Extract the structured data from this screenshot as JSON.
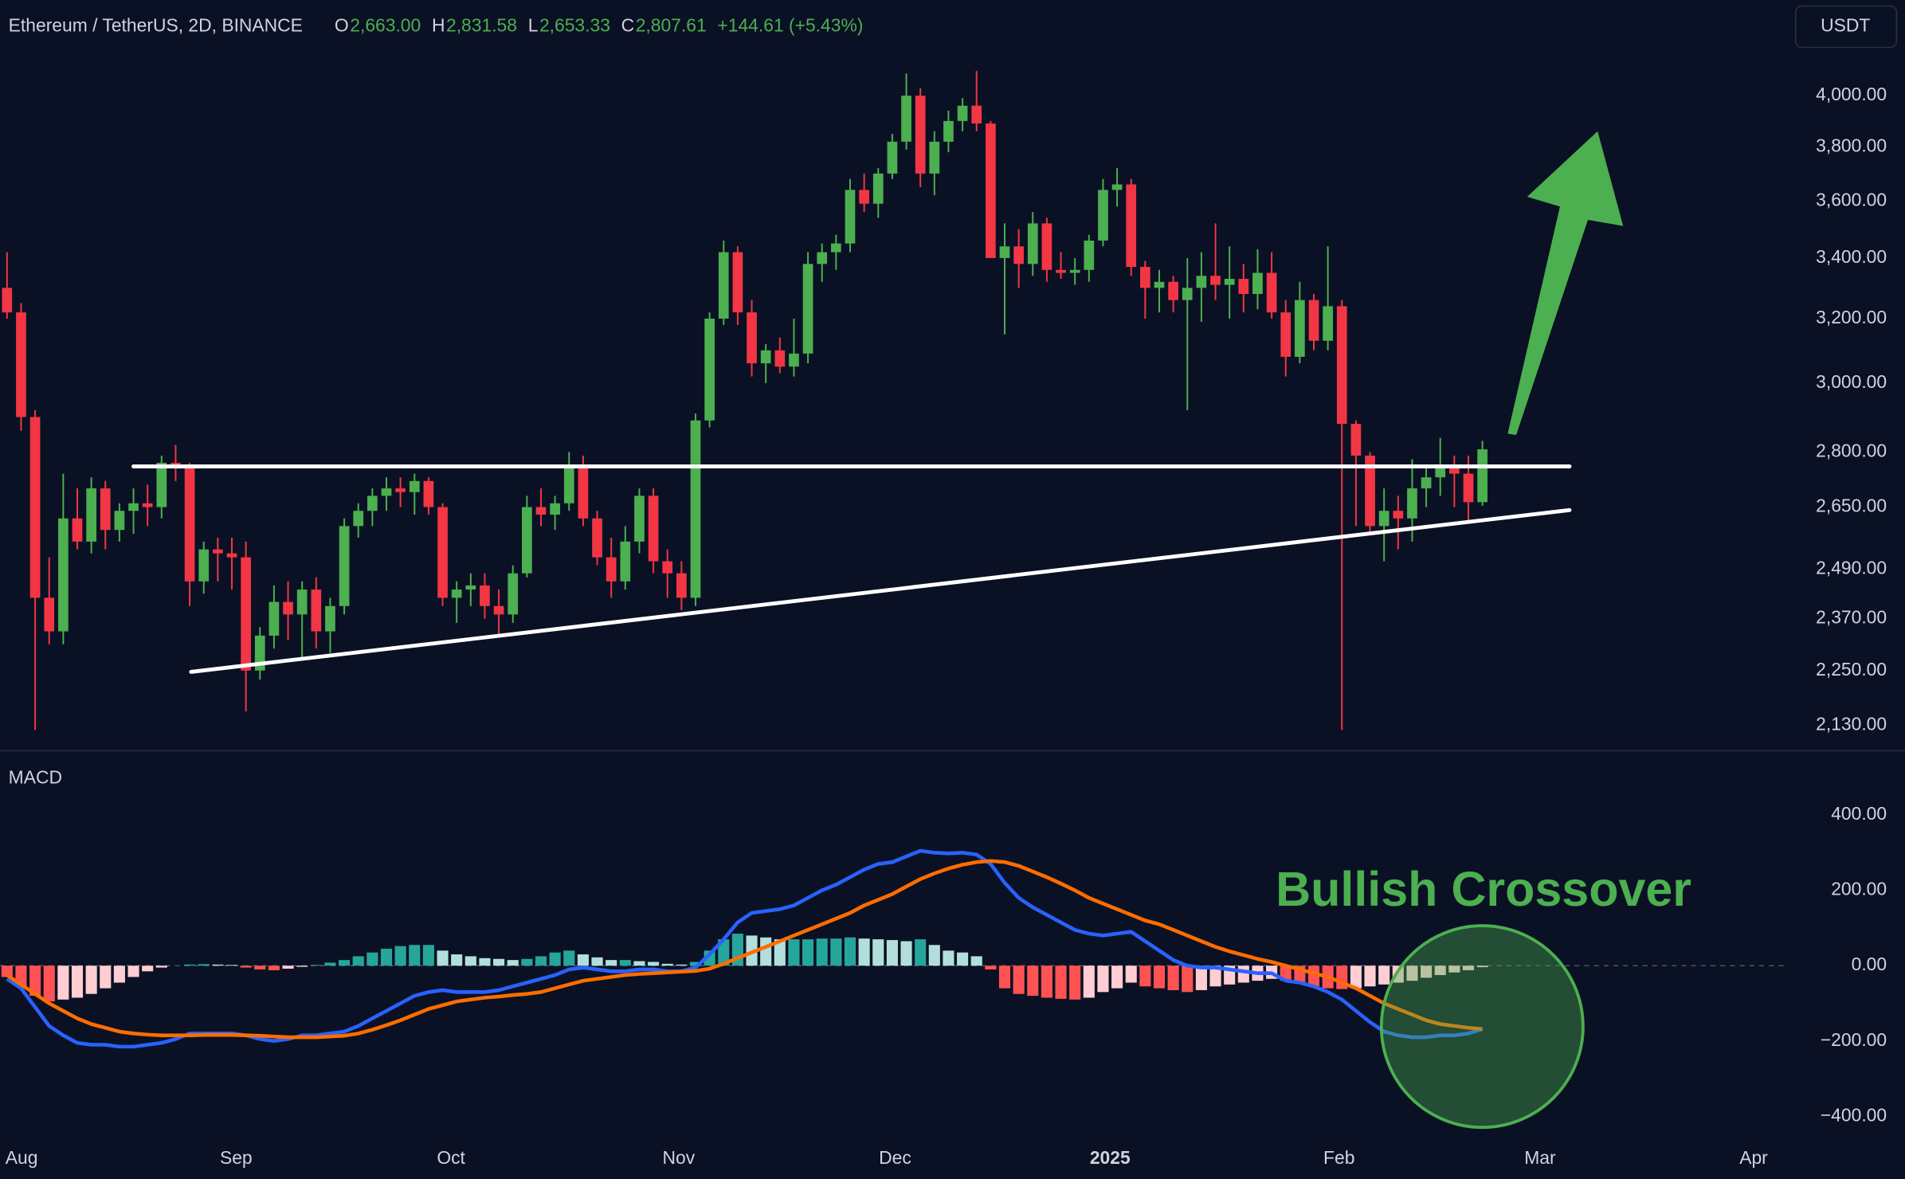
{
  "chart_data": [
    {
      "type": "candlestick",
      "title": "Ethereum / TetherUS, 2D, BINANCE",
      "ohlc_labels": [
        {
          "label": "O",
          "value": "2,663.00"
        },
        {
          "label": "H",
          "value": "2,831.58"
        },
        {
          "label": "L",
          "value": "2,653.33"
        },
        {
          "label": "C",
          "value": "2,807.61"
        }
      ],
      "change": "+144.61 (+5.43%)",
      "currency": "USDT",
      "up_color": "#4caf50",
      "down_color": "#f23645",
      "open": [
        3300,
        3220,
        2900,
        2420,
        2340,
        2620,
        2560,
        2700,
        2590,
        2640,
        2660,
        2650,
        2770,
        2760,
        2460,
        2540,
        2530,
        2520,
        2250,
        2330,
        2410,
        2380,
        2440,
        2340,
        2400,
        2600,
        2640,
        2680,
        2700,
        2690,
        2720,
        2650,
        2420,
        2440,
        2450,
        2400,
        2380,
        2480,
        2650,
        2630,
        2660,
        2760,
        2620,
        2520,
        2460,
        2560,
        2680,
        2510,
        2480,
        2420,
        2890,
        3200,
        3420,
        3220,
        3060,
        3100,
        3050,
        3090,
        3380,
        3420,
        3450,
        3640,
        3590,
        3700,
        3820,
        4000,
        3700,
        3820,
        3900,
        3960,
        3890,
        3400,
        3440,
        3380,
        3520,
        3360,
        3350,
        3360,
        3460,
        3640,
        3660,
        3370,
        3300,
        3320,
        3260,
        3300,
        3340,
        3310,
        3330,
        3280,
        3350,
        3220,
        3080,
        3260,
        3130,
        3240,
        2880,
        2790,
        2600,
        2640,
        2620,
        2700,
        2730,
        2760,
        2740,
        2663
      ],
      "high": [
        3420,
        3250,
        2920,
        2520,
        2740,
        2700,
        2730,
        2720,
        2660,
        2700,
        2710,
        2790,
        2820,
        2770,
        2560,
        2570,
        2570,
        2560,
        2350,
        2450,
        2460,
        2460,
        2470,
        2420,
        2620,
        2660,
        2700,
        2730,
        2730,
        2740,
        2730,
        2660,
        2460,
        2480,
        2480,
        2440,
        2500,
        2680,
        2700,
        2680,
        2800,
        2790,
        2640,
        2570,
        2600,
        2700,
        2700,
        2540,
        2510,
        2910,
        3220,
        3460,
        3440,
        3260,
        3120,
        3140,
        3200,
        3420,
        3450,
        3480,
        3680,
        3700,
        3720,
        3850,
        4090,
        4030,
        3860,
        3940,
        3990,
        4100,
        3900,
        3520,
        3500,
        3560,
        3540,
        3420,
        3400,
        3480,
        3680,
        3720,
        3680,
        3390,
        3360,
        3340,
        3400,
        3420,
        3520,
        3440,
        3380,
        3430,
        3420,
        3260,
        3320,
        3280,
        3440,
        3260,
        2890,
        2800,
        2700,
        2680,
        2780,
        2760,
        2840,
        2790,
        2790,
        2831.58
      ],
      "low": [
        3200,
        2860,
        2120,
        2310,
        2310,
        2540,
        2530,
        2540,
        2560,
        2580,
        2600,
        2620,
        2720,
        2400,
        2430,
        2460,
        2440,
        2160,
        2230,
        2300,
        2320,
        2280,
        2300,
        2290,
        2380,
        2570,
        2600,
        2640,
        2650,
        2630,
        2630,
        2400,
        2360,
        2400,
        2370,
        2330,
        2360,
        2470,
        2600,
        2590,
        2640,
        2600,
        2500,
        2420,
        2440,
        2530,
        2480,
        2420,
        2390,
        2400,
        2870,
        3180,
        3180,
        3020,
        3000,
        3030,
        3020,
        3060,
        3320,
        3360,
        3420,
        3560,
        3540,
        3680,
        3790,
        3650,
        3620,
        3780,
        3860,
        3860,
        3400,
        3150,
        3300,
        3340,
        3320,
        3330,
        3310,
        3320,
        3440,
        3580,
        3340,
        3200,
        3220,
        3220,
        2920,
        3190,
        3260,
        3200,
        3220,
        3230,
        3200,
        3020,
        3060,
        3100,
        3100,
        2120,
        2600,
        2580,
        2510,
        2540,
        2560,
        2650,
        2680,
        2650,
        2610,
        2653.33
      ],
      "close": [
        3220,
        2900,
        2420,
        2340,
        2620,
        2560,
        2700,
        2590,
        2640,
        2660,
        2650,
        2770,
        2760,
        2460,
        2540,
        2530,
        2520,
        2250,
        2330,
        2410,
        2380,
        2440,
        2340,
        2400,
        2600,
        2640,
        2680,
        2700,
        2690,
        2720,
        2650,
        2420,
        2440,
        2450,
        2400,
        2380,
        2480,
        2650,
        2630,
        2660,
        2760,
        2620,
        2520,
        2460,
        2560,
        2680,
        2510,
        2480,
        2420,
        2890,
        3200,
        3420,
        3220,
        3060,
        3100,
        3050,
        3090,
        3380,
        3420,
        3450,
        3640,
        3590,
        3700,
        3820,
        4000,
        3700,
        3820,
        3900,
        3960,
        3890,
        3400,
        3440,
        3380,
        3520,
        3360,
        3350,
        3360,
        3460,
        3640,
        3660,
        3370,
        3300,
        3320,
        3260,
        3300,
        3340,
        3310,
        3330,
        3280,
        3350,
        3220,
        3080,
        3260,
        3130,
        3240,
        2880,
        2790,
        2600,
        2640,
        2620,
        2700,
        2730,
        2760,
        2740,
        2663,
        2807.61
      ],
      "lines": [
        {
          "color": "#ffffff",
          "points": [
            [
              9.0,
              2760
            ],
            [
              111.2,
              2760
            ]
          ]
        },
        {
          "color": "#ffffff",
          "points": [
            [
              13.1,
              2247
            ],
            [
              111.2,
              2642
            ]
          ]
        }
      ],
      "yscale": "log",
      "ylim": [
        2084,
        4193
      ],
      "yticks": [
        {
          "value": 4000,
          "label": "4,000.00"
        },
        {
          "value": 3800,
          "label": "3,800.00"
        },
        {
          "value": 3600,
          "label": "3,600.00"
        },
        {
          "value": 3400,
          "label": "3,400.00"
        },
        {
          "value": 3200,
          "label": "3,200.00"
        },
        {
          "value": 3000,
          "label": "3,000.00"
        },
        {
          "value": 2800,
          "label": "2,800.00"
        },
        {
          "value": 2650,
          "label": "2,650.00"
        },
        {
          "value": 2490,
          "label": "2,490.00"
        },
        {
          "value": 2370,
          "label": "2,370.00"
        },
        {
          "value": 2250,
          "label": "2,250.00"
        },
        {
          "value": 2130,
          "label": "2,130.00"
        }
      ],
      "xlim": [
        -0.5,
        126.6
      ],
      "xticks": [
        {
          "value": 1.04,
          "label": "Aug"
        },
        {
          "value": 16.3,
          "label": "Sep"
        },
        {
          "value": 31.6,
          "label": "Oct"
        },
        {
          "value": 47.8,
          "label": "Nov"
        },
        {
          "value": 63.2,
          "label": "Dec"
        },
        {
          "value": 78.5,
          "label": "2025"
        },
        {
          "value": 94.8,
          "label": "Feb"
        },
        {
          "value": 109.1,
          "label": "Mar"
        },
        {
          "value": 124.3,
          "label": "Apr"
        }
      ],
      "grid": false
    },
    {
      "type": "macd",
      "title": "MACD",
      "annotation": "Bullish Crossover",
      "series": [
        {
          "color": "#2962ff",
          "values": [
            -35,
            -60,
            -110,
            -160,
            -185,
            -205,
            -210,
            -210,
            -215,
            -215,
            -210,
            -205,
            -195,
            -180,
            -180,
            -180,
            -180,
            -185,
            -195,
            -200,
            -195,
            -185,
            -185,
            -180,
            -175,
            -160,
            -140,
            -120,
            -100,
            -80,
            -70,
            -65,
            -70,
            -70,
            -70,
            -65,
            -55,
            -45,
            -35,
            -25,
            -10,
            -5,
            -10,
            -15,
            -15,
            -10,
            -10,
            -15,
            -15,
            -5,
            30,
            70,
            115,
            140,
            145,
            150,
            160,
            180,
            200,
            215,
            235,
            255,
            270,
            275,
            290,
            305,
            300,
            298,
            300,
            295,
            270,
            220,
            180,
            155,
            135,
            115,
            95,
            85,
            80,
            85,
            90,
            65,
            40,
            15,
            0,
            -5,
            -5,
            -10,
            -15,
            -20,
            -20,
            -40,
            -45,
            -55,
            -70,
            -90,
            -120,
            -150,
            -175,
            -185,
            -190,
            -190,
            -185,
            -185,
            -180,
            -168
          ]
        },
        {
          "color": "#ff6d00",
          "values": [
            -25,
            -50,
            -75,
            -100,
            -120,
            -140,
            -155,
            -165,
            -175,
            -180,
            -183,
            -185,
            -185,
            -185,
            -184,
            -184,
            -184,
            -185,
            -186,
            -188,
            -190,
            -190,
            -190,
            -188,
            -186,
            -180,
            -170,
            -158,
            -145,
            -130,
            -115,
            -105,
            -95,
            -90,
            -85,
            -82,
            -78,
            -75,
            -70,
            -60,
            -50,
            -40,
            -35,
            -30,
            -25,
            -22,
            -20,
            -18,
            -16,
            -14,
            -8,
            5,
            20,
            35,
            50,
            65,
            80,
            95,
            110,
            125,
            140,
            160,
            175,
            190,
            210,
            230,
            245,
            258,
            268,
            275,
            278,
            275,
            265,
            250,
            235,
            218,
            200,
            180,
            165,
            150,
            135,
            120,
            110,
            95,
            80,
            65,
            50,
            38,
            28,
            18,
            10,
            0,
            -10,
            -20,
            -30,
            -45,
            -60,
            -80,
            -100,
            -115,
            -130,
            -145,
            -155,
            -160,
            -165,
            -168
          ]
        }
      ],
      "histogram": [
        -30,
        -55,
        -80,
        -95,
        -90,
        -85,
        -75,
        -60,
        -45,
        -30,
        -15,
        -5,
        0,
        3,
        4,
        3,
        2,
        -5,
        -10,
        -12,
        -8,
        -3,
        2,
        8,
        15,
        25,
        35,
        45,
        52,
        55,
        55,
        40,
        30,
        25,
        20,
        18,
        15,
        18,
        25,
        35,
        40,
        30,
        22,
        15,
        15,
        12,
        10,
        5,
        3,
        10,
        40,
        70,
        85,
        80,
        75,
        70,
        70,
        70,
        72,
        72,
        75,
        72,
        70,
        68,
        65,
        70,
        55,
        40,
        35,
        25,
        -10,
        -60,
        -75,
        -80,
        -85,
        -88,
        -90,
        -85,
        -70,
        -60,
        -45,
        -55,
        -60,
        -65,
        -70,
        -65,
        -55,
        -50,
        -45,
        -40,
        -35,
        -40,
        -45,
        -55,
        -60,
        -62,
        -60,
        -55,
        -50,
        -45,
        -40,
        -32,
        -25,
        -18,
        -12,
        -4
      ],
      "histogram_colors": {
        "positive_rising": "#26a69a",
        "positive_falling": "#b2dfdb",
        "negative_falling": "#ff5252",
        "negative_rising": "#ffcdd2"
      },
      "ylim": [
        -468,
        548
      ],
      "yticks": [
        {
          "value": 400,
          "label": "400.00"
        },
        {
          "value": 200,
          "label": "200.00"
        },
        {
          "value": 0,
          "label": "0.00"
        },
        {
          "value": -200,
          "label": "−200.00"
        },
        {
          "value": -400,
          "label": "−400.00"
        }
      ],
      "grid": false
    }
  ]
}
